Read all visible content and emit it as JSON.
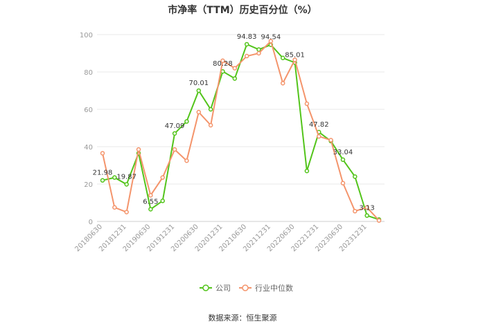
{
  "chart_data": {
    "type": "line",
    "title": "市净率（TTM）历史百分位（%）",
    "source": "数据来源：恒生聚源",
    "ylim": [
      0,
      100
    ],
    "yticks": [
      0,
      20,
      40,
      60,
      80,
      100
    ],
    "grid": true,
    "legend_position": "bottom",
    "x_labels": [
      "20180630",
      "20181231",
      "20190630",
      "20191231",
      "20200630",
      "20201231",
      "20210630",
      "20211231",
      "20220630",
      "20221231",
      "20230630",
      "20231231"
    ],
    "series": [
      {
        "name": "公司",
        "color": "#52c41a",
        "values": [
          21.98,
          23.5,
          19.87,
          36.5,
          6.55,
          11.0,
          47.09,
          53.5,
          70.01,
          60.0,
          80.28,
          76.5,
          94.83,
          92.0,
          94.54,
          87.5,
          85.01,
          27.0,
          47.82,
          43.0,
          33.04,
          24.0,
          3.13,
          1.0
        ],
        "labels": {
          "0": "21.98",
          "2": "19.87",
          "4": "6.55",
          "6": "47.09",
          "8": "70.01",
          "10": "80.28",
          "12": "94.83",
          "14": "94.54",
          "16": "85.01",
          "18": "47.82",
          "20": "33.04",
          "22": "3.13"
        }
      },
      {
        "name": "行业中位数",
        "color": "#f4946b",
        "values": [
          36.5,
          7.5,
          5.0,
          38.5,
          14.0,
          23.5,
          38.5,
          32.5,
          58.5,
          51.5,
          86.0,
          82.0,
          88.5,
          90.0,
          96.5,
          74.0,
          86.5,
          63.0,
          45.5,
          43.5,
          20.5,
          5.5,
          7.5,
          0.5
        ]
      }
    ]
  }
}
